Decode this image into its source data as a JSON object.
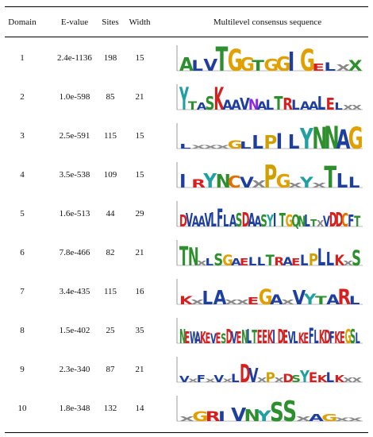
{
  "headers": {
    "domain": "Domain",
    "evalue": "E-value",
    "sites": "Sites",
    "width": "Width",
    "logo": "Multilevel consensus sequence"
  },
  "rows": [
    {
      "domain": "1",
      "evalue": "2.4e-1136",
      "sites": "198",
      "width": "15",
      "logo": [
        [
          "A",
          "#2d8f2d",
          0.55
        ],
        [
          "L",
          "#1f3f9e",
          0.45
        ],
        [
          "V",
          "#1f3f9e",
          0.5
        ],
        [
          "T",
          "#2d8f2d",
          1.0
        ],
        [
          "G",
          "#e0a000",
          0.9
        ],
        [
          "G",
          "#e0a000",
          0.55
        ],
        [
          "T",
          "#2d8f2d",
          0.45
        ],
        [
          "G",
          "#e0a000",
          0.5
        ],
        [
          "G",
          "#e0a000",
          0.6
        ],
        [
          "I",
          "#1f3f9e",
          0.8
        ],
        [
          "G",
          "#e0a000",
          0.9
        ],
        [
          "E",
          "#d62020",
          0.3
        ],
        [
          "L",
          "#1f3f9e",
          0.35
        ],
        [
          "X",
          "#888888",
          0.25
        ],
        [
          "X",
          "#2d8f2d",
          0.45
        ]
      ]
    },
    {
      "domain": "2",
      "evalue": "1.0e-598",
      "sites": "85",
      "width": "21",
      "logo": [
        [
          "Y",
          "#20a0a0",
          0.95
        ],
        [
          "T",
          "#2d8f2d",
          0.35
        ],
        [
          "A",
          "#1f3f9e",
          0.3
        ],
        [
          "S",
          "#2d8f2d",
          0.55
        ],
        [
          "K",
          "#d62020",
          0.95
        ],
        [
          "A",
          "#1f3f9e",
          0.4
        ],
        [
          "A",
          "#1f3f9e",
          0.4
        ],
        [
          "V",
          "#1f3f9e",
          0.5
        ],
        [
          "N",
          "#8a2be2",
          0.45
        ],
        [
          "A",
          "#1f3f9e",
          0.35
        ],
        [
          "L",
          "#1f3f9e",
          0.4
        ],
        [
          "T",
          "#2d8f2d",
          0.55
        ],
        [
          "R",
          "#d62020",
          0.5
        ],
        [
          "L",
          "#1f3f9e",
          0.4
        ],
        [
          "A",
          "#1f3f9e",
          0.35
        ],
        [
          "A",
          "#1f3f9e",
          0.35
        ],
        [
          "L",
          "#1f3f9e",
          0.55
        ],
        [
          "E",
          "#d62020",
          0.5
        ],
        [
          "L",
          "#1f3f9e",
          0.3
        ],
        [
          "X",
          "#888888",
          0.2
        ],
        [
          "X",
          "#888888",
          0.2
        ]
      ]
    },
    {
      "domain": "3",
      "evalue": "2.5e-591",
      "sites": "115",
      "width": "15",
      "logo": [
        [
          "L",
          "#1f3f9e",
          0.2
        ],
        [
          "X",
          "#888888",
          0.15
        ],
        [
          "X",
          "#888888",
          0.15
        ],
        [
          "X",
          "#888888",
          0.15
        ],
        [
          "G",
          "#e0a000",
          0.35
        ],
        [
          "L",
          "#1f3f9e",
          0.3
        ],
        [
          "L",
          "#1f3f9e",
          0.55
        ],
        [
          "P",
          "#d0a000",
          0.55
        ],
        [
          "I",
          "#1f3f9e",
          0.65
        ],
        [
          "L",
          "#1f3f9e",
          0.6
        ],
        [
          "Y",
          "#20a0a0",
          0.85
        ],
        [
          "N",
          "#2d8f2d",
          0.9
        ],
        [
          "N",
          "#2d8f2d",
          0.95
        ],
        [
          "A",
          "#1f3f9e",
          0.8
        ],
        [
          "G",
          "#e0a000",
          0.9
        ]
      ]
    },
    {
      "domain": "4",
      "evalue": "3.5e-538",
      "sites": "109",
      "width": "15",
      "logo": [
        [
          "I",
          "#1f3f9e",
          0.55
        ],
        [
          "R",
          "#d62020",
          0.35
        ],
        [
          "Y",
          "#20a0a0",
          0.6
        ],
        [
          "N",
          "#2d8f2d",
          0.55
        ],
        [
          "C",
          "#e07000",
          0.5
        ],
        [
          "V",
          "#1f3f9e",
          0.45
        ],
        [
          "X",
          "#888888",
          0.3
        ],
        [
          "P",
          "#d0a000",
          0.95
        ],
        [
          "G",
          "#e0a000",
          0.55
        ],
        [
          "X",
          "#888888",
          0.2
        ],
        [
          "Y",
          "#20a0a0",
          0.45
        ],
        [
          "X",
          "#888888",
          0.2
        ],
        [
          "T",
          "#2d8f2d",
          0.9
        ],
        [
          "L",
          "#1f3f9e",
          0.6
        ],
        [
          "L",
          "#1f3f9e",
          0.45
        ]
      ]
    },
    {
      "domain": "5",
      "evalue": "1.6e-513",
      "sites": "44",
      "width": "29",
      "logo": [
        [
          "D",
          "#d62020",
          0.5
        ],
        [
          "V",
          "#1f3f9e",
          0.55
        ],
        [
          "A",
          "#1f3f9e",
          0.45
        ],
        [
          "A",
          "#1f3f9e",
          0.45
        ],
        [
          "V",
          "#1f3f9e",
          0.55
        ],
        [
          "L",
          "#1f3f9e",
          0.6
        ],
        [
          "F",
          "#1f3f9e",
          0.75
        ],
        [
          "L",
          "#1f3f9e",
          0.5
        ],
        [
          "A",
          "#1f3f9e",
          0.5
        ],
        [
          "S",
          "#2d8f2d",
          0.55
        ],
        [
          "D",
          "#d62020",
          0.6
        ],
        [
          "A",
          "#1f3f9e",
          0.55
        ],
        [
          "A",
          "#1f3f9e",
          0.45
        ],
        [
          "S",
          "#2d8f2d",
          0.5
        ],
        [
          "Y",
          "#20a0a0",
          0.5
        ],
        [
          "I",
          "#1f3f9e",
          0.55
        ],
        [
          "T",
          "#2d8f2d",
          0.55
        ],
        [
          "G",
          "#e0a000",
          0.5
        ],
        [
          "Q",
          "#2d8f2d",
          0.5
        ],
        [
          "N",
          "#2d8f2d",
          0.45
        ],
        [
          "L",
          "#1f3f9e",
          0.5
        ],
        [
          "T",
          "#2d8f2d",
          0.3
        ],
        [
          "X",
          "#888888",
          0.25
        ],
        [
          "V",
          "#1f3f9e",
          0.45
        ],
        [
          "D",
          "#d62020",
          0.6
        ],
        [
          "D",
          "#d62020",
          0.6
        ],
        [
          "C",
          "#e07000",
          0.55
        ],
        [
          "F",
          "#1f3f9e",
          0.5
        ],
        [
          "T",
          "#2d8f2d",
          0.45
        ]
      ]
    },
    {
      "domain": "6",
      "evalue": "7.8e-466",
      "sites": "82",
      "width": "21",
      "logo": [
        [
          "T",
          "#2d8f2d",
          0.8
        ],
        [
          "N",
          "#2d8f2d",
          0.75
        ],
        [
          "X",
          "#888888",
          0.2
        ],
        [
          "L",
          "#1f3f9e",
          0.3
        ],
        [
          "S",
          "#2d8f2d",
          0.5
        ],
        [
          "G",
          "#e0a000",
          0.45
        ],
        [
          "A",
          "#1f3f9e",
          0.3
        ],
        [
          "E",
          "#d62020",
          0.3
        ],
        [
          "L",
          "#1f3f9e",
          0.35
        ],
        [
          "L",
          "#1f3f9e",
          0.35
        ],
        [
          "T",
          "#2d8f2d",
          0.45
        ],
        [
          "R",
          "#d62020",
          0.35
        ],
        [
          "A",
          "#1f3f9e",
          0.35
        ],
        [
          "E",
          "#d62020",
          0.3
        ],
        [
          "L",
          "#1f3f9e",
          0.45
        ],
        [
          "P",
          "#d0a000",
          0.5
        ],
        [
          "L",
          "#1f3f9e",
          0.7
        ],
        [
          "L",
          "#1f3f9e",
          0.55
        ],
        [
          "K",
          "#d62020",
          0.45
        ],
        [
          "X",
          "#888888",
          0.2
        ],
        [
          "S",
          "#2d8f2d",
          0.65
        ]
      ]
    },
    {
      "domain": "7",
      "evalue": "3.4e-435",
      "sites": "115",
      "width": "16",
      "logo": [
        [
          "K",
          "#d62020",
          0.35
        ],
        [
          "X",
          "#888888",
          0.2
        ],
        [
          "L",
          "#1f3f9e",
          0.55
        ],
        [
          "A",
          "#1f3f9e",
          0.6
        ],
        [
          "X",
          "#888888",
          0.2
        ],
        [
          "X",
          "#888888",
          0.2
        ],
        [
          "E",
          "#d62020",
          0.3
        ],
        [
          "G",
          "#e0a000",
          0.65
        ],
        [
          "A",
          "#1f3f9e",
          0.4
        ],
        [
          "X",
          "#888888",
          0.2
        ],
        [
          "V",
          "#1f3f9e",
          0.6
        ],
        [
          "Y",
          "#20a0a0",
          0.45
        ],
        [
          "T",
          "#2d8f2d",
          0.35
        ],
        [
          "A",
          "#1f3f9e",
          0.4
        ],
        [
          "R",
          "#d62020",
          0.65
        ],
        [
          "L",
          "#1f3f9e",
          0.35
        ]
      ]
    },
    {
      "domain": "8",
      "evalue": "1.5e-402",
      "sites": "25",
      "width": "35",
      "logo": [
        [
          "N",
          "#2d8f2d",
          0.6
        ],
        [
          "E",
          "#d62020",
          0.5
        ],
        [
          "W",
          "#1f3f9e",
          0.5
        ],
        [
          "A",
          "#1f3f9e",
          0.45
        ],
        [
          "K",
          "#d62020",
          0.5
        ],
        [
          "E",
          "#d62020",
          0.45
        ],
        [
          "V",
          "#1f3f9e",
          0.4
        ],
        [
          "E",
          "#d62020",
          0.45
        ],
        [
          "S",
          "#2d8f2d",
          0.4
        ],
        [
          "D",
          "#d62020",
          0.6
        ],
        [
          "V",
          "#1f3f9e",
          0.5
        ],
        [
          "E",
          "#d62020",
          0.5
        ],
        [
          "N",
          "#2d8f2d",
          0.55
        ],
        [
          "L",
          "#1f3f9e",
          0.6
        ],
        [
          "T",
          "#2d8f2d",
          0.55
        ],
        [
          "E",
          "#d62020",
          0.55
        ],
        [
          "E",
          "#d62020",
          0.55
        ],
        [
          "K",
          "#d62020",
          0.55
        ],
        [
          "I",
          "#1f3f9e",
          0.55
        ],
        [
          "D",
          "#d62020",
          0.6
        ],
        [
          "E",
          "#d62020",
          0.55
        ],
        [
          "V",
          "#1f3f9e",
          0.5
        ],
        [
          "L",
          "#1f3f9e",
          0.5
        ],
        [
          "K",
          "#d62020",
          0.45
        ],
        [
          "E",
          "#d62020",
          0.45
        ],
        [
          "F",
          "#1f3f9e",
          0.65
        ],
        [
          "L",
          "#1f3f9e",
          0.55
        ],
        [
          "K",
          "#d62020",
          0.55
        ],
        [
          "D",
          "#d62020",
          0.55
        ],
        [
          "F",
          "#1f3f9e",
          0.5
        ],
        [
          "K",
          "#d62020",
          0.5
        ],
        [
          "E",
          "#d62020",
          0.5
        ],
        [
          "G",
          "#e0a000",
          0.6
        ],
        [
          "S",
          "#2d8f2d",
          0.6
        ],
        [
          "L",
          "#1f3f9e",
          0.45
        ]
      ]
    },
    {
      "domain": "9",
      "evalue": "2.3e-340",
      "sites": "87",
      "width": "21",
      "logo": [
        [
          "V",
          "#1f3f9e",
          0.25
        ],
        [
          "X",
          "#888888",
          0.15
        ],
        [
          "F",
          "#1f3f9e",
          0.3
        ],
        [
          "X",
          "#888888",
          0.15
        ],
        [
          "V",
          "#1f3f9e",
          0.3
        ],
        [
          "X",
          "#888888",
          0.15
        ],
        [
          "L",
          "#1f3f9e",
          0.35
        ],
        [
          "D",
          "#d62020",
          0.75
        ],
        [
          "V",
          "#1f3f9e",
          0.6
        ],
        [
          "X",
          "#888888",
          0.2
        ],
        [
          "P",
          "#d0a000",
          0.4
        ],
        [
          "X",
          "#888888",
          0.2
        ],
        [
          "D",
          "#d62020",
          0.35
        ],
        [
          "S",
          "#2d8f2d",
          0.3
        ],
        [
          "Y",
          "#20a0a0",
          0.5
        ],
        [
          "E",
          "#d62020",
          0.4
        ],
        [
          "K",
          "#d62020",
          0.3
        ],
        [
          "L",
          "#1f3f9e",
          0.4
        ],
        [
          "K",
          "#d62020",
          0.3
        ],
        [
          "X",
          "#888888",
          0.2
        ],
        [
          "X",
          "#888888",
          0.2
        ]
      ]
    },
    {
      "domain": "10",
      "evalue": "1.8e-348",
      "sites": "132",
      "width": "14",
      "logo": [
        [
          "X",
          "#888888",
          0.2
        ],
        [
          "G",
          "#e0a000",
          0.4
        ],
        [
          "R",
          "#d62020",
          0.4
        ],
        [
          "I",
          "#1f3f9e",
          0.4
        ],
        [
          "V",
          "#1f3f9e",
          0.55
        ],
        [
          "N",
          "#2d8f2d",
          0.5
        ],
        [
          "Y",
          "#20a0a0",
          0.45
        ],
        [
          "S",
          "#2d8f2d",
          0.8
        ],
        [
          "S",
          "#2d8f2d",
          0.85
        ],
        [
          "X",
          "#888888",
          0.2
        ],
        [
          "A",
          "#1f3f9e",
          0.3
        ],
        [
          "G",
          "#e0a000",
          0.3
        ],
        [
          "X",
          "#888888",
          0.15
        ],
        [
          "X",
          "#888888",
          0.15
        ]
      ]
    }
  ]
}
